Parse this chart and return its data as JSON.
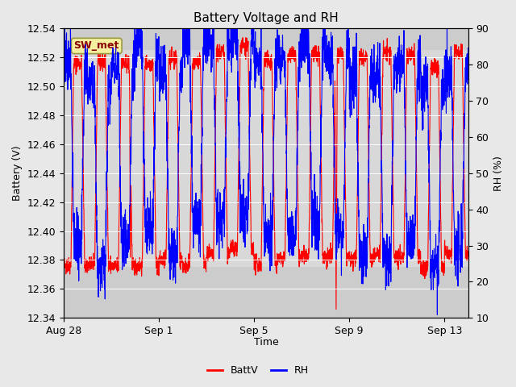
{
  "title": "Battery Voltage and RH",
  "xlabel": "Time",
  "ylabel_left": "Battery (V)",
  "ylabel_right": "RH (%)",
  "ylim_left": [
    12.34,
    12.54
  ],
  "ylim_right": [
    10,
    90
  ],
  "yticks_left": [
    12.34,
    12.36,
    12.38,
    12.4,
    12.42,
    12.44,
    12.46,
    12.48,
    12.5,
    12.52,
    12.54
  ],
  "yticks_right": [
    10,
    20,
    30,
    40,
    50,
    60,
    70,
    80,
    90
  ],
  "xtick_labels": [
    "Aug 28",
    "Sep 1",
    "Sep 5",
    "Sep 9",
    "Sep 13"
  ],
  "xtick_positions": [
    0,
    4,
    8,
    12,
    16
  ],
  "annotation_label": "SW_met",
  "legend_labels": [
    "BattV",
    "RH"
  ],
  "line_colors": [
    "red",
    "blue"
  ],
  "fig_bg": "#e8e8e8",
  "plot_bg": "#cccccc",
  "band_color": "#d8d8d8",
  "title_fontsize": 11,
  "axis_fontsize": 9,
  "tick_fontsize": 9,
  "n_days": 17,
  "seed": 42
}
